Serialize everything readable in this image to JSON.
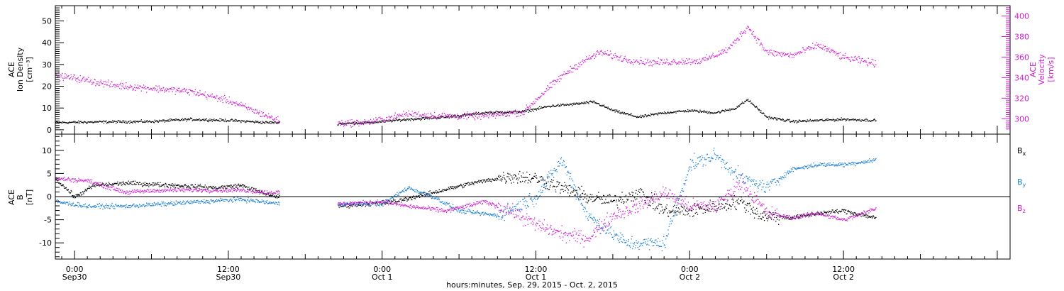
{
  "figure": {
    "xlabel": "hours:minutes, Sep. 29, 2015 - Oct. 2, 2015"
  },
  "chart_data": [
    {
      "type": "scatter",
      "panel": "top",
      "x_range": [
        "2015-09-29T22:30",
        "2015-10-03T01:00"
      ],
      "ylabel_left": [
        "ACE",
        "Ion Density",
        "[cm⁻³]"
      ],
      "ylabel_right": [
        "ACE",
        "Velocity",
        "[km/s]"
      ],
      "ylim_left": [
        -2,
        57
      ],
      "yticks_left": [
        0,
        10,
        20,
        30,
        40,
        50
      ],
      "ylim_right": [
        285,
        410
      ],
      "yticks_right": [
        300,
        320,
        340,
        360,
        380,
        400
      ],
      "colors": {
        "density": "#000000",
        "velocity": "#d21bd2"
      },
      "gaps": [
        [
          "2015-09-30T16:00",
          "2015-09-30T20:30"
        ]
      ],
      "series": [
        {
          "axis": "left",
          "color": "#000000",
          "points": [
            [
              "2015-09-29T22:30",
              3.5
            ],
            [
              "2015-09-30T02:00",
              3.8
            ],
            [
              "2015-09-30T06:00",
              4.0
            ],
            [
              "2015-09-30T09:00",
              5.0
            ],
            [
              "2015-09-30T12:00",
              4.5
            ],
            [
              "2015-09-30T15:00",
              3.5
            ],
            [
              "2015-09-30T16:00",
              3.5
            ],
            [
              "2015-09-30T20:30",
              3.0
            ],
            [
              "2015-09-30T23:00",
              3.5
            ],
            [
              "2015-10-01T02:00",
              5.0
            ],
            [
              "2015-10-01T05:00",
              6.0
            ],
            [
              "2015-10-01T08:00",
              8.0
            ],
            [
              "2015-10-01T11:00",
              8.5
            ],
            [
              "2015-10-01T13:00",
              11.0
            ],
            [
              "2015-10-01T15:00",
              12.0
            ],
            [
              "2015-10-01T16:30",
              13.0
            ],
            [
              "2015-10-01T18:00",
              9.0
            ],
            [
              "2015-10-01T20:00",
              6.0
            ],
            [
              "2015-10-01T22:00",
              8.0
            ],
            [
              "2015-10-02T00:00",
              9.0
            ],
            [
              "2015-10-02T02:00",
              8.0
            ],
            [
              "2015-10-02T03:30",
              10.0
            ],
            [
              "2015-10-02T04:30",
              14.0
            ],
            [
              "2015-10-02T06:00",
              6.0
            ],
            [
              "2015-10-02T08:00",
              4.0
            ],
            [
              "2015-10-02T10:00",
              4.5
            ],
            [
              "2015-10-02T12:00",
              5.0
            ],
            [
              "2015-10-02T14:30",
              4.5
            ]
          ]
        },
        {
          "axis": "right",
          "color": "#d21bd2",
          "points": [
            [
              "2015-09-29T22:30",
              342
            ],
            [
              "2015-09-30T00:00",
              340
            ],
            [
              "2015-09-30T03:00",
              333
            ],
            [
              "2015-09-30T06:00",
              330
            ],
            [
              "2015-09-30T09:00",
              327
            ],
            [
              "2015-09-30T12:00",
              318
            ],
            [
              "2015-09-30T14:00",
              308
            ],
            [
              "2015-09-30T16:00",
              298
            ],
            [
              "2015-09-30T20:30",
              296
            ],
            [
              "2015-09-30T23:00",
              297
            ],
            [
              "2015-10-01T02:00",
              305
            ],
            [
              "2015-10-01T05:00",
              303
            ],
            [
              "2015-10-01T08:00",
              303
            ],
            [
              "2015-10-01T11:00",
              307
            ],
            [
              "2015-10-01T12:30",
              325
            ],
            [
              "2015-10-01T14:00",
              342
            ],
            [
              "2015-10-01T15:30",
              355
            ],
            [
              "2015-10-01T17:00",
              365
            ],
            [
              "2015-10-01T19:00",
              358
            ],
            [
              "2015-10-01T21:00",
              355
            ],
            [
              "2015-10-01T23:00",
              356
            ],
            [
              "2015-10-02T01:00",
              357
            ],
            [
              "2015-10-02T03:00",
              368
            ],
            [
              "2015-10-02T04:30",
              390
            ],
            [
              "2015-10-02T06:00",
              365
            ],
            [
              "2015-10-02T08:00",
              362
            ],
            [
              "2015-10-02T10:00",
              372
            ],
            [
              "2015-10-02T12:00",
              360
            ],
            [
              "2015-10-02T14:30",
              354
            ]
          ]
        }
      ]
    },
    {
      "type": "scatter",
      "panel": "bottom",
      "x_range": [
        "2015-09-29T22:30",
        "2015-10-03T01:00"
      ],
      "ylabel_left": [
        "ACE",
        "B",
        "[nT]"
      ],
      "ylim": [
        -13.5,
        13.5
      ],
      "yticks": [
        -10,
        -5,
        0,
        5,
        10
      ],
      "zero_line": true,
      "gaps": [
        [
          "2015-09-30T16:00",
          "2015-09-30T20:30"
        ]
      ],
      "legend_position": "right",
      "series": [
        {
          "name": "Bx",
          "legend": {
            "main": "B",
            "sub": "x"
          },
          "color": "#000000",
          "points": [
            [
              "2015-09-29T22:30",
              4.0
            ],
            [
              "2015-09-30T00:00",
              0.0
            ],
            [
              "2015-09-30T01:30",
              2.5
            ],
            [
              "2015-09-30T04:00",
              3.0
            ],
            [
              "2015-09-30T08:00",
              2.5
            ],
            [
              "2015-09-30T11:00",
              2.0
            ],
            [
              "2015-09-30T13:00",
              2.5
            ],
            [
              "2015-09-30T15:00",
              0.5
            ],
            [
              "2015-09-30T16:00",
              0.0
            ],
            [
              "2015-09-30T20:30",
              -2.0
            ],
            [
              "2015-10-01T01:00",
              -1.0
            ],
            [
              "2015-10-01T04:00",
              1.0
            ],
            [
              "2015-10-01T07:00",
              3.0
            ],
            [
              "2015-10-01T10:00",
              4.5
            ],
            [
              "2015-10-01T12:00",
              4.0
            ],
            [
              "2015-10-01T14:00",
              2.0
            ],
            [
              "2015-10-01T16:00",
              0.0
            ],
            [
              "2015-10-01T18:00",
              -1.0
            ],
            [
              "2015-10-01T20:00",
              1.0
            ],
            [
              "2015-10-01T22:00",
              -3.0
            ],
            [
              "2015-10-02T00:00",
              -3.0
            ],
            [
              "2015-10-02T02:00",
              -2.0
            ],
            [
              "2015-10-02T04:00",
              -1.0
            ],
            [
              "2015-10-02T05:30",
              -4.0
            ],
            [
              "2015-10-02T08:00",
              -4.5
            ],
            [
              "2015-10-02T10:00",
              -3.5
            ],
            [
              "2015-10-02T12:00",
              -3.0
            ],
            [
              "2015-10-02T14:30",
              -4.5
            ]
          ]
        },
        {
          "name": "By",
          "legend": {
            "main": "B",
            "sub": "y"
          },
          "color": "#1b7fd4",
          "points": [
            [
              "2015-09-29T22:30",
              -1.0
            ],
            [
              "2015-09-30T01:00",
              -2.0
            ],
            [
              "2015-09-30T04:00",
              -2.0
            ],
            [
              "2015-09-30T07:00",
              -1.5
            ],
            [
              "2015-09-30T10:00",
              -1.0
            ],
            [
              "2015-09-30T13:00",
              -0.5
            ],
            [
              "2015-09-30T16:00",
              -1.5
            ],
            [
              "2015-09-30T20:30",
              -1.5
            ],
            [
              "2015-10-01T00:00",
              -1.5
            ],
            [
              "2015-10-01T02:00",
              2.0
            ],
            [
              "2015-10-01T04:00",
              0.0
            ],
            [
              "2015-10-01T06:00",
              -3.0
            ],
            [
              "2015-10-01T09:00",
              -4.0
            ],
            [
              "2015-10-01T12:00",
              0.0
            ],
            [
              "2015-10-01T14:00",
              8.0
            ],
            [
              "2015-10-01T16:00",
              -4.0
            ],
            [
              "2015-10-01T19:00",
              -10.0
            ],
            [
              "2015-10-01T22:00",
              -10.0
            ],
            [
              "2015-10-02T00:00",
              7.0
            ],
            [
              "2015-10-02T02:00",
              9.0
            ],
            [
              "2015-10-02T04:00",
              4.0
            ],
            [
              "2015-10-02T06:00",
              2.0
            ],
            [
              "2015-10-02T08:00",
              6.0
            ],
            [
              "2015-10-02T10:00",
              7.0
            ],
            [
              "2015-10-02T12:00",
              7.0
            ],
            [
              "2015-10-02T14:30",
              8.0
            ]
          ]
        },
        {
          "name": "Bz",
          "legend": {
            "main": "B",
            "sub": "z"
          },
          "color": "#d21bd2",
          "points": [
            [
              "2015-09-29T22:30",
              4.0
            ],
            [
              "2015-09-30T01:00",
              3.5
            ],
            [
              "2015-09-30T04:00",
              1.0
            ],
            [
              "2015-09-30T07:00",
              1.5
            ],
            [
              "2015-09-30T10:00",
              1.5
            ],
            [
              "2015-09-30T13:00",
              1.5
            ],
            [
              "2015-09-30T15:00",
              1.0
            ],
            [
              "2015-09-30T16:00",
              1.0
            ],
            [
              "2015-09-30T20:30",
              -1.5
            ],
            [
              "2015-10-01T00:00",
              -1.0
            ],
            [
              "2015-10-01T02:00",
              -2.0
            ],
            [
              "2015-10-01T05:00",
              -3.0
            ],
            [
              "2015-10-01T08:00",
              -1.0
            ],
            [
              "2015-10-01T10:00",
              -3.0
            ],
            [
              "2015-10-01T12:00",
              -6.0
            ],
            [
              "2015-10-01T14:00",
              -8.0
            ],
            [
              "2015-10-01T16:00",
              -9.0
            ],
            [
              "2015-10-01T18:00",
              -4.0
            ],
            [
              "2015-10-01T20:00",
              -2.0
            ],
            [
              "2015-10-01T22:00",
              1.0
            ],
            [
              "2015-10-02T00:00",
              -2.0
            ],
            [
              "2015-10-02T02:00",
              -2.0
            ],
            [
              "2015-10-02T04:00",
              3.0
            ],
            [
              "2015-10-02T06:00",
              -3.5
            ],
            [
              "2015-10-02T08:00",
              -4.5
            ],
            [
              "2015-10-02T10:00",
              -3.5
            ],
            [
              "2015-10-02T12:00",
              -5.0
            ],
            [
              "2015-10-02T14:30",
              -2.5
            ]
          ]
        }
      ]
    }
  ],
  "x_ticks": [
    {
      "t": "2015-09-30T00:00",
      "line1": "0:00",
      "line2": "Sep30"
    },
    {
      "t": "2015-09-30T12:00",
      "line1": "12:00",
      "line2": "Sep30"
    },
    {
      "t": "2015-10-01T00:00",
      "line1": "0:00",
      "line2": "Oct 1"
    },
    {
      "t": "2015-10-01T12:00",
      "line1": "12:00",
      "line2": "Oct 1"
    },
    {
      "t": "2015-10-02T00:00",
      "line1": "0:00",
      "line2": "Oct 2"
    },
    {
      "t": "2015-10-02T12:00",
      "line1": "12:00",
      "line2": "Oct 2"
    }
  ]
}
